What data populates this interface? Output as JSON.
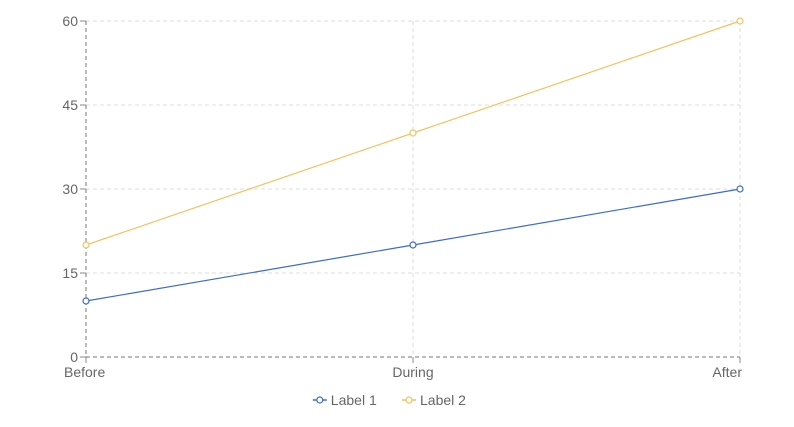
{
  "chart_data": {
    "type": "line",
    "title": "",
    "xlabel": "",
    "ylabel": "",
    "categories": [
      "Before",
      "During",
      "After"
    ],
    "y_ticks": [
      "0",
      "15",
      "30",
      "45",
      "60"
    ],
    "ylim": [
      0,
      60
    ],
    "grid": true,
    "legend_position": "bottom",
    "series": [
      {
        "name": "Label 1",
        "values": [
          10,
          20,
          30
        ],
        "color": "#3b6bd1"
      },
      {
        "name": "Label 2",
        "values": [
          20,
          40,
          60
        ],
        "color": "#f5c15c"
      }
    ]
  }
}
